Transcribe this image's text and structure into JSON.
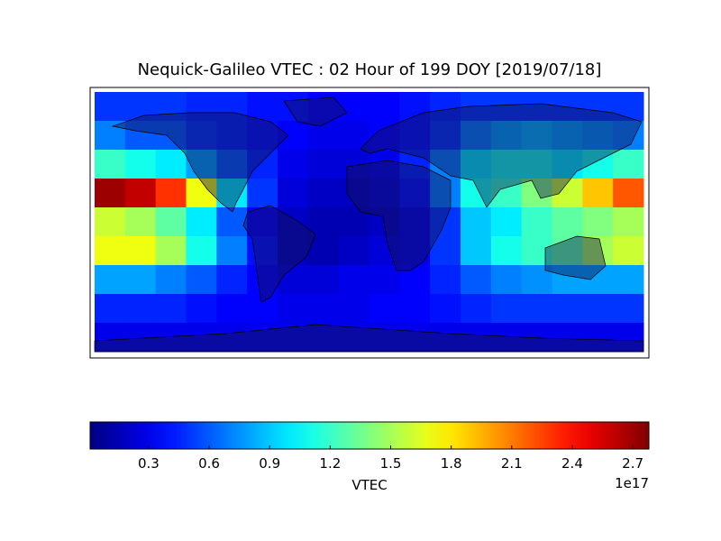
{
  "chart_data": {
    "type": "heatmap",
    "title": "Nequick-Galileo VTEC : 02 Hour of 199 DOY [2019/07/18]",
    "colormap": "jet",
    "values": [
      [
        0.5,
        0.5,
        0.5,
        0.45,
        0.45,
        0.4,
        0.4,
        0.35,
        0.35,
        0.35,
        0.4,
        0.45,
        0.5,
        0.5,
        0.5,
        0.5,
        0.5,
        0.5
      ],
      [
        0.7,
        0.6,
        0.6,
        0.5,
        0.45,
        0.4,
        0.35,
        0.3,
        0.3,
        0.35,
        0.4,
        0.5,
        0.7,
        0.8,
        0.85,
        0.8,
        0.75,
        0.7
      ],
      [
        1.2,
        1.1,
        1.0,
        0.8,
        0.6,
        0.45,
        0.3,
        0.25,
        0.25,
        0.3,
        0.45,
        0.7,
        1.0,
        1.1,
        1.1,
        1.0,
        1.1,
        1.2
      ],
      [
        2.7,
        2.6,
        2.3,
        1.7,
        1.0,
        0.5,
        0.25,
        0.2,
        0.2,
        0.25,
        0.4,
        0.7,
        1.1,
        1.2,
        1.4,
        1.6,
        1.9,
        2.2
      ],
      [
        1.6,
        1.5,
        1.3,
        1.0,
        0.6,
        0.35,
        0.2,
        0.15,
        0.15,
        0.2,
        0.3,
        0.5,
        0.9,
        1.0,
        1.2,
        1.3,
        1.4,
        1.5
      ],
      [
        1.7,
        1.7,
        1.5,
        1.1,
        0.7,
        0.4,
        0.2,
        0.15,
        0.2,
        0.25,
        0.3,
        0.5,
        0.9,
        1.1,
        1.2,
        1.3,
        1.5,
        1.6
      ],
      [
        0.8,
        0.8,
        0.7,
        0.6,
        0.45,
        0.35,
        0.25,
        0.25,
        0.3,
        0.3,
        0.35,
        0.45,
        0.6,
        0.7,
        0.75,
        0.8,
        0.8,
        0.8
      ],
      [
        0.45,
        0.45,
        0.45,
        0.4,
        0.35,
        0.35,
        0.3,
        0.3,
        0.3,
        0.35,
        0.35,
        0.4,
        0.45,
        0.5,
        0.5,
        0.5,
        0.5,
        0.5
      ],
      [
        0.3,
        0.3,
        0.3,
        0.3,
        0.3,
        0.3,
        0.3,
        0.3,
        0.3,
        0.3,
        0.3,
        0.3,
        0.3,
        0.3,
        0.3,
        0.3,
        0.3,
        0.3
      ]
    ],
    "colorbar": {
      "label": "VTEC",
      "offset_label": "1e17",
      "clim": [
        0.01,
        2.78
      ],
      "ticks": [
        0.3,
        0.6,
        0.9,
        1.2,
        1.5,
        1.8,
        2.1,
        2.4,
        2.7
      ]
    }
  }
}
